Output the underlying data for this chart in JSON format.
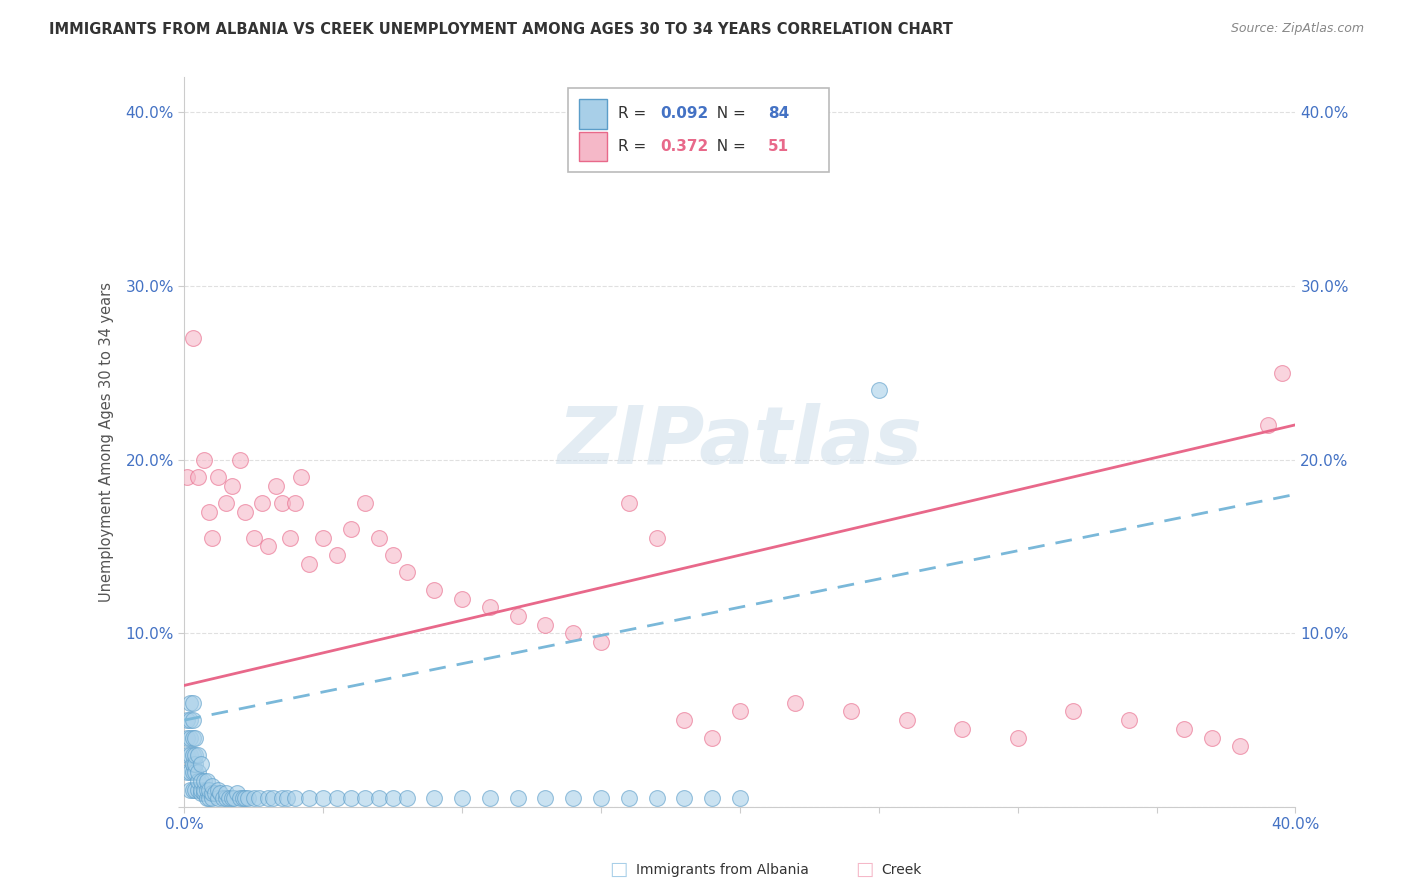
{
  "title": "IMMIGRANTS FROM ALBANIA VS CREEK UNEMPLOYMENT AMONG AGES 30 TO 34 YEARS CORRELATION CHART",
  "source": "Source: ZipAtlas.com",
  "ylabel": "Unemployment Among Ages 30 to 34 years",
  "R_blue": 0.092,
  "N_blue": 84,
  "R_pink": 0.372,
  "N_pink": 51,
  "blue_fill": "#a8cfe8",
  "blue_edge": "#5b9dc9",
  "pink_fill": "#f5b8c8",
  "pink_edge": "#e8698a",
  "blue_line": "#7ab8d9",
  "pink_line": "#e8688a",
  "text_color": "#4472c4",
  "watermark_color": "#c8dae8",
  "grid_color": "#e0e0e0",
  "bg_color": "#ffffff",
  "xlim": [
    0.0,
    0.4
  ],
  "ylim": [
    0.0,
    0.42
  ],
  "blue_x": [
    0.001,
    0.001,
    0.001,
    0.001,
    0.002,
    0.002,
    0.002,
    0.002,
    0.002,
    0.002,
    0.003,
    0.003,
    0.003,
    0.003,
    0.003,
    0.003,
    0.003,
    0.004,
    0.004,
    0.004,
    0.004,
    0.004,
    0.005,
    0.005,
    0.005,
    0.005,
    0.006,
    0.006,
    0.006,
    0.006,
    0.007,
    0.007,
    0.007,
    0.008,
    0.008,
    0.008,
    0.009,
    0.009,
    0.01,
    0.01,
    0.01,
    0.011,
    0.012,
    0.012,
    0.013,
    0.014,
    0.015,
    0.015,
    0.016,
    0.017,
    0.018,
    0.019,
    0.02,
    0.021,
    0.022,
    0.023,
    0.025,
    0.027,
    0.03,
    0.032,
    0.035,
    0.037,
    0.04,
    0.045,
    0.05,
    0.055,
    0.06,
    0.065,
    0.07,
    0.075,
    0.08,
    0.09,
    0.1,
    0.11,
    0.12,
    0.13,
    0.14,
    0.15,
    0.16,
    0.17,
    0.18,
    0.19,
    0.2,
    0.25
  ],
  "blue_y": [
    0.02,
    0.03,
    0.04,
    0.05,
    0.01,
    0.02,
    0.03,
    0.04,
    0.05,
    0.06,
    0.01,
    0.02,
    0.025,
    0.03,
    0.04,
    0.05,
    0.06,
    0.01,
    0.02,
    0.025,
    0.03,
    0.04,
    0.01,
    0.015,
    0.02,
    0.03,
    0.008,
    0.01,
    0.015,
    0.025,
    0.008,
    0.01,
    0.015,
    0.005,
    0.01,
    0.015,
    0.005,
    0.01,
    0.005,
    0.008,
    0.012,
    0.008,
    0.005,
    0.01,
    0.008,
    0.005,
    0.005,
    0.008,
    0.005,
    0.005,
    0.005,
    0.008,
    0.005,
    0.005,
    0.005,
    0.005,
    0.005,
    0.005,
    0.005,
    0.005,
    0.005,
    0.005,
    0.005,
    0.005,
    0.005,
    0.005,
    0.005,
    0.005,
    0.005,
    0.005,
    0.005,
    0.005,
    0.005,
    0.005,
    0.005,
    0.005,
    0.005,
    0.005,
    0.005,
    0.005,
    0.005,
    0.005,
    0.005,
    0.24
  ],
  "pink_x": [
    0.001,
    0.003,
    0.005,
    0.007,
    0.009,
    0.01,
    0.012,
    0.015,
    0.017,
    0.02,
    0.022,
    0.025,
    0.028,
    0.03,
    0.033,
    0.035,
    0.038,
    0.04,
    0.042,
    0.045,
    0.05,
    0.055,
    0.06,
    0.065,
    0.07,
    0.075,
    0.08,
    0.09,
    0.1,
    0.11,
    0.12,
    0.13,
    0.14,
    0.15,
    0.16,
    0.17,
    0.18,
    0.19,
    0.2,
    0.22,
    0.24,
    0.26,
    0.28,
    0.3,
    0.32,
    0.34,
    0.36,
    0.37,
    0.38,
    0.39,
    0.395
  ],
  "pink_y": [
    0.19,
    0.27,
    0.19,
    0.2,
    0.17,
    0.155,
    0.19,
    0.175,
    0.185,
    0.2,
    0.17,
    0.155,
    0.175,
    0.15,
    0.185,
    0.175,
    0.155,
    0.175,
    0.19,
    0.14,
    0.155,
    0.145,
    0.16,
    0.175,
    0.155,
    0.145,
    0.135,
    0.125,
    0.12,
    0.115,
    0.11,
    0.105,
    0.1,
    0.095,
    0.175,
    0.155,
    0.05,
    0.04,
    0.055,
    0.06,
    0.055,
    0.05,
    0.045,
    0.04,
    0.055,
    0.05,
    0.045,
    0.04,
    0.035,
    0.22,
    0.25
  ],
  "legend_blue_label": "Immigrants from Albania",
  "legend_pink_label": "Creek"
}
